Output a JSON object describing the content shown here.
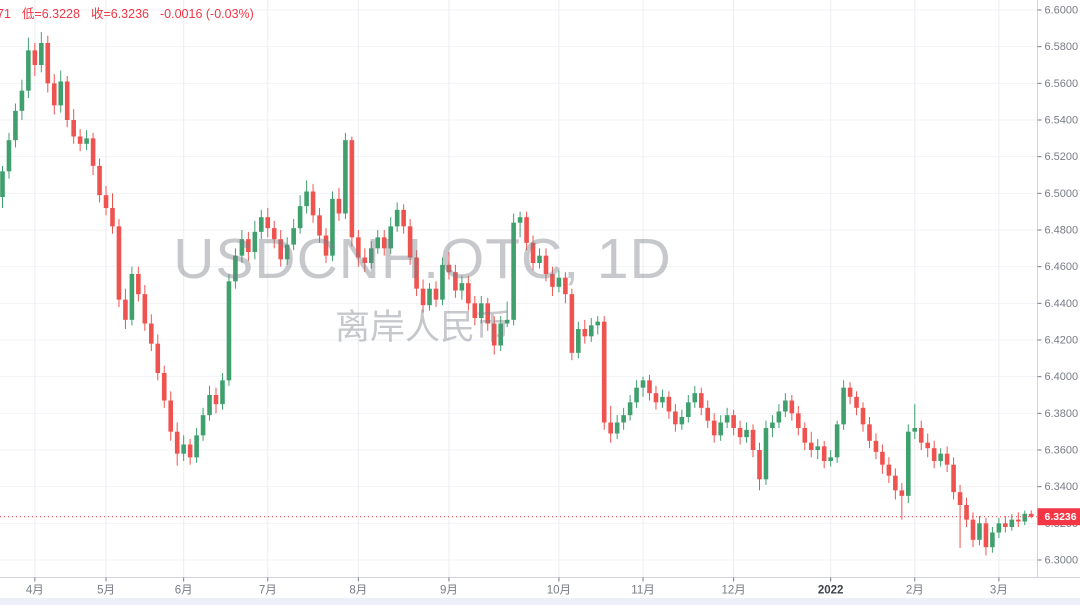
{
  "info_bar": {
    "color": "#f23645",
    "parts": [
      "71",
      "低=6.3228",
      "收=6.3236",
      "-0.0016 (-0.03%)"
    ]
  },
  "watermark": {
    "line1": "USDCNH.OTC, 1D",
    "line2": "离岸人民币"
  },
  "colors": {
    "up": "#3fa06e",
    "down": "#ef5350",
    "accent_red": "#f23645",
    "axis_text": "#787b86",
    "axis_text_strong": "#3e424d",
    "axis_border": "#d1d4dc",
    "grid_h": "#f1f3f6",
    "grid_v": "#ebedf2",
    "tag_text": "#ffffff"
  },
  "chart_data": {
    "type": "candlestick",
    "title": "USDCNH.OTC, 1D",
    "subtitle": "离岸人民币",
    "interval": "1D",
    "legend_position": "none",
    "grid": true,
    "y_axis": {
      "max": 6.6,
      "min": 6.3,
      "step": 0.02,
      "labels": [
        "6.6000",
        "6.5800",
        "6.5600",
        "6.5400",
        "6.5200",
        "6.5000",
        "6.4800",
        "6.4600",
        "6.4400",
        "6.4200",
        "6.4000",
        "6.3800",
        "6.3600",
        "6.3400",
        "6.3200",
        "6.3000"
      ]
    },
    "x_ticks": [
      {
        "label": "4月",
        "i": 5
      },
      {
        "label": "5月",
        "i": 16
      },
      {
        "label": "6月",
        "i": 28
      },
      {
        "label": "7月",
        "i": 41
      },
      {
        "label": "8月",
        "i": 55
      },
      {
        "label": "9月",
        "i": 69
      },
      {
        "label": "10月",
        "i": 86
      },
      {
        "label": "11月",
        "i": 99
      },
      {
        "label": "12月",
        "i": 113
      },
      {
        "label": "2022",
        "i": 128,
        "strong": true
      },
      {
        "label": "2月",
        "i": 141
      },
      {
        "label": "3月",
        "i": 154
      }
    ],
    "last_price": {
      "value": 6.3236,
      "label": "6.3236",
      "direction": "down"
    },
    "ohlc_last": {
      "low": "6.3228",
      "close": "6.3236",
      "change": "-0.0016 (-0.03%)"
    },
    "candles": [
      [
        6.498,
        6.515,
        6.492,
        6.512
      ],
      [
        6.512,
        6.533,
        6.508,
        6.529
      ],
      [
        6.529,
        6.549,
        6.525,
        6.545
      ],
      [
        6.545,
        6.562,
        6.54,
        6.556
      ],
      [
        6.556,
        6.585,
        6.552,
        6.578
      ],
      [
        6.578,
        6.582,
        6.564,
        6.57
      ],
      [
        6.57,
        6.588,
        6.566,
        6.582
      ],
      [
        6.582,
        6.586,
        6.555,
        6.56
      ],
      [
        6.56,
        6.565,
        6.543,
        6.548
      ],
      [
        6.548,
        6.567,
        6.544,
        6.561
      ],
      [
        6.561,
        6.564,
        6.536,
        6.54
      ],
      [
        6.54,
        6.546,
        6.527,
        6.531
      ],
      [
        6.531,
        6.535,
        6.523,
        6.527
      ],
      [
        6.527,
        6.5345,
        6.5235,
        6.53
      ],
      [
        6.53,
        6.533,
        6.51,
        6.515
      ],
      [
        6.515,
        6.519,
        6.495,
        6.499
      ],
      [
        6.499,
        6.504,
        6.488,
        6.492
      ],
      [
        6.492,
        6.5,
        6.478,
        6.482
      ],
      [
        6.482,
        6.486,
        6.438,
        6.442
      ],
      [
        6.442,
        6.448,
        6.426,
        6.431
      ],
      [
        6.431,
        6.46,
        6.428,
        6.456
      ],
      [
        6.456,
        6.46,
        6.441,
        6.445
      ],
      [
        6.445,
        6.45,
        6.425,
        6.429
      ],
      [
        6.429,
        6.434,
        6.414,
        6.418
      ],
      [
        6.418,
        6.423,
        6.398,
        6.402
      ],
      [
        6.402,
        6.406,
        6.383,
        6.387
      ],
      [
        6.387,
        6.392,
        6.365,
        6.37
      ],
      [
        6.37,
        6.375,
        6.3515,
        6.358
      ],
      [
        6.358,
        6.368,
        6.354,
        6.363
      ],
      [
        6.363,
        6.366,
        6.352,
        6.356
      ],
      [
        6.356,
        6.372,
        6.353,
        6.368
      ],
      [
        6.368,
        6.383,
        6.365,
        6.379
      ],
      [
        6.379,
        6.395,
        6.376,
        6.39
      ],
      [
        6.39,
        6.394,
        6.38,
        6.385
      ],
      [
        6.385,
        6.402,
        6.382,
        6.398
      ],
      [
        6.398,
        6.456,
        6.395,
        6.452
      ],
      [
        6.452,
        6.47,
        6.448,
        6.466
      ],
      [
        6.466,
        6.48,
        6.462,
        6.475
      ],
      [
        6.475,
        6.479,
        6.463,
        6.468
      ],
      [
        6.468,
        6.485,
        6.464,
        6.479
      ],
      [
        6.479,
        6.491,
        6.475,
        6.487
      ],
      [
        6.487,
        6.492,
        6.476,
        6.481
      ],
      [
        6.481,
        6.485,
        6.47,
        6.475
      ],
      [
        6.475,
        6.48,
        6.46,
        6.464
      ],
      [
        6.464,
        6.476,
        6.461,
        6.472
      ],
      [
        6.472,
        6.486,
        6.469,
        6.481
      ],
      [
        6.481,
        6.499,
        6.478,
        6.493
      ],
      [
        6.493,
        6.507,
        6.489,
        6.501
      ],
      [
        6.501,
        6.505,
        6.484,
        6.488
      ],
      [
        6.488,
        6.492,
        6.473,
        6.477
      ],
      [
        6.477,
        6.481,
        6.462,
        6.466
      ],
      [
        6.466,
        6.501,
        6.463,
        6.497
      ],
      [
        6.497,
        6.503,
        6.485,
        6.489
      ],
      [
        6.489,
        6.533,
        6.486,
        6.529
      ],
      [
        6.529,
        6.531,
        6.471,
        6.476
      ],
      [
        6.476,
        6.48,
        6.46,
        6.465
      ],
      [
        6.465,
        6.47,
        6.457,
        6.462
      ],
      [
        6.462,
        6.474,
        6.459,
        6.47
      ],
      [
        6.47,
        6.48,
        6.467,
        6.476
      ],
      [
        6.476,
        6.48,
        6.466,
        6.47
      ],
      [
        6.47,
        6.487,
        6.467,
        6.482
      ],
      [
        6.482,
        6.495,
        6.479,
        6.491
      ],
      [
        6.491,
        6.494,
        6.478,
        6.482
      ],
      [
        6.482,
        6.486,
        6.461,
        6.465
      ],
      [
        6.465,
        6.469,
        6.444,
        6.448
      ],
      [
        6.448,
        6.453,
        6.435,
        6.439
      ],
      [
        6.439,
        6.451,
        6.436,
        6.448
      ],
      [
        6.448,
        6.452,
        6.438,
        6.442
      ],
      [
        6.442,
        6.465,
        6.439,
        6.461
      ],
      [
        6.461,
        6.468,
        6.453,
        6.457
      ],
      [
        6.457,
        6.461,
        6.443,
        6.447
      ],
      [
        6.447,
        6.455,
        6.442,
        6.451
      ],
      [
        6.451,
        6.455,
        6.436,
        6.44
      ],
      [
        6.44,
        6.444,
        6.428,
        6.432
      ],
      [
        6.432,
        6.444,
        6.429,
        6.44
      ],
      [
        6.44,
        6.443,
        6.425,
        6.429
      ],
      [
        6.429,
        6.433,
        6.412,
        6.417
      ],
      [
        6.417,
        6.433,
        6.414,
        6.429
      ],
      [
        6.429,
        6.441,
        6.427,
        6.431
      ],
      [
        6.431,
        6.489,
        6.428,
        6.484
      ],
      [
        6.484,
        6.49,
        6.476,
        6.487
      ],
      [
        6.487,
        6.49,
        6.469,
        6.473
      ],
      [
        6.473,
        6.477,
        6.458,
        6.462
      ],
      [
        6.462,
        6.47,
        6.459,
        6.466
      ],
      [
        6.466,
        6.47,
        6.452,
        6.456
      ],
      [
        6.456,
        6.46,
        6.444,
        6.449
      ],
      [
        6.449,
        6.458,
        6.446,
        6.454
      ],
      [
        6.454,
        6.457,
        6.44,
        6.445
      ],
      [
        6.445,
        6.448,
        6.409,
        6.413
      ],
      [
        6.413,
        6.43,
        6.41,
        6.426
      ],
      [
        6.426,
        6.431,
        6.418,
        6.422
      ],
      [
        6.422,
        6.432,
        6.419,
        6.428
      ],
      [
        6.428,
        6.433,
        6.423,
        6.43
      ],
      [
        6.43,
        6.433,
        6.371,
        6.375
      ],
      [
        6.375,
        6.384,
        6.364,
        6.369
      ],
      [
        6.369,
        6.379,
        6.366,
        6.375
      ],
      [
        6.375,
        6.383,
        6.371,
        6.379
      ],
      [
        6.379,
        6.39,
        6.376,
        6.386
      ],
      [
        6.386,
        6.398,
        6.383,
        6.394
      ],
      [
        6.394,
        6.4,
        6.389,
        6.398
      ],
      [
        6.398,
        6.401,
        6.387,
        6.391
      ],
      [
        6.391,
        6.395,
        6.382,
        6.386
      ],
      [
        6.386,
        6.393,
        6.383,
        6.389
      ],
      [
        6.389,
        6.392,
        6.377,
        6.381
      ],
      [
        6.381,
        6.385,
        6.37,
        6.374
      ],
      [
        6.374,
        6.382,
        6.371,
        6.378
      ],
      [
        6.378,
        6.39,
        6.375,
        6.386
      ],
      [
        6.386,
        6.395,
        6.383,
        6.391
      ],
      [
        6.391,
        6.394,
        6.379,
        6.383
      ],
      [
        6.383,
        6.387,
        6.372,
        6.376
      ],
      [
        6.376,
        6.38,
        6.364,
        6.368
      ],
      [
        6.368,
        6.379,
        6.365,
        6.375
      ],
      [
        6.375,
        6.383,
        6.372,
        6.379
      ],
      [
        6.379,
        6.382,
        6.368,
        6.372
      ],
      [
        6.372,
        6.376,
        6.363,
        6.367
      ],
      [
        6.367,
        6.375,
        6.364,
        6.371
      ],
      [
        6.371,
        6.374,
        6.356,
        6.36
      ],
      [
        6.36,
        6.364,
        6.338,
        6.344
      ],
      [
        6.344,
        6.376,
        6.341,
        6.372
      ],
      [
        6.372,
        6.379,
        6.367,
        6.375
      ],
      [
        6.375,
        6.385,
        6.372,
        6.381
      ],
      [
        6.381,
        6.391,
        6.378,
        6.387
      ],
      [
        6.387,
        6.39,
        6.376,
        6.38
      ],
      [
        6.38,
        6.384,
        6.368,
        6.372
      ],
      [
        6.372,
        6.375,
        6.36,
        6.364
      ],
      [
        6.364,
        6.37,
        6.356,
        6.36
      ],
      [
        6.36,
        6.366,
        6.355,
        6.362
      ],
      [
        6.362,
        6.365,
        6.35,
        6.354
      ],
      [
        6.354,
        6.36,
        6.351,
        6.356
      ],
      [
        6.356,
        6.376,
        6.353,
        6.374
      ],
      [
        6.374,
        6.398,
        6.371,
        6.394
      ],
      [
        6.394,
        6.397,
        6.385,
        6.389
      ],
      [
        6.389,
        6.392,
        6.379,
        6.383
      ],
      [
        6.383,
        6.386,
        6.37,
        6.374
      ],
      [
        6.374,
        6.378,
        6.361,
        6.365
      ],
      [
        6.365,
        6.369,
        6.355,
        6.359
      ],
      [
        6.359,
        6.363,
        6.347,
        6.352
      ],
      [
        6.352,
        6.356,
        6.342,
        6.346
      ],
      [
        6.346,
        6.35,
        6.333,
        6.338
      ],
      [
        6.338,
        6.342,
        6.322,
        6.335
      ],
      [
        6.335,
        6.374,
        6.331,
        6.37
      ],
      [
        6.37,
        6.385,
        6.366,
        6.372
      ],
      [
        6.372,
        6.376,
        6.36,
        6.364
      ],
      [
        6.364,
        6.369,
        6.356,
        6.361
      ],
      [
        6.361,
        6.365,
        6.35,
        6.354
      ],
      [
        6.354,
        6.361,
        6.351,
        6.358
      ],
      [
        6.358,
        6.362,
        6.348,
        6.352
      ],
      [
        6.352,
        6.356,
        6.333,
        6.337
      ],
      [
        6.337,
        6.341,
        6.3065,
        6.33
      ],
      [
        6.33,
        6.334,
        6.318,
        6.322
      ],
      [
        6.322,
        6.326,
        6.307,
        6.311
      ],
      [
        6.311,
        6.324,
        6.308,
        6.32
      ],
      [
        6.32,
        6.323,
        6.3025,
        6.307
      ],
      [
        6.307,
        6.318,
        6.304,
        6.315
      ],
      [
        6.315,
        6.323,
        6.312,
        6.32
      ],
      [
        6.32,
        6.324,
        6.315,
        6.318
      ],
      [
        6.318,
        6.325,
        6.316,
        6.322
      ],
      [
        6.322,
        6.326,
        6.318,
        6.321
      ],
      [
        6.321,
        6.327,
        6.319,
        6.3252
      ],
      [
        6.3252,
        6.3271,
        6.3228,
        6.3236
      ]
    ]
  }
}
